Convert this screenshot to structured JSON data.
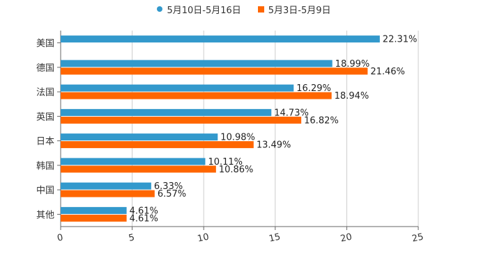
{
  "colors": {
    "series_a": "#3399cc",
    "series_b": "#ff6600",
    "grid": "#cccccc",
    "axis": "#666666",
    "text": "#333333"
  },
  "legend": {
    "series_a_label": "5月10日-5月16日",
    "series_b_label": "5月3日-5月9日"
  },
  "chart_data": {
    "type": "bar",
    "orientation": "horizontal",
    "title": "",
    "xlabel": "",
    "ylabel": "",
    "xlim": [
      0,
      25
    ],
    "x_ticks": [
      0,
      5,
      10,
      15,
      20,
      25
    ],
    "grid": true,
    "legend_position": "top-center",
    "categories": [
      "美国",
      "德国",
      "法国",
      "英国",
      "日本",
      "韩国",
      "中国",
      "其他"
    ],
    "series": [
      {
        "name": "5月10日-5月16日",
        "color": "#3399cc",
        "values": [
          22.31,
          18.99,
          16.29,
          14.73,
          10.98,
          10.11,
          6.33,
          4.61
        ],
        "labels": [
          "22.31%",
          "18.99%",
          "16.29%",
          "14.73%",
          "10.98%",
          "10.11%",
          "6.33%",
          "4.61%"
        ]
      },
      {
        "name": "5月3日-5月9日",
        "color": "#ff6600",
        "values": [
          null,
          21.46,
          18.94,
          16.82,
          13.49,
          10.86,
          6.57,
          4.61
        ],
        "labels": [
          "",
          "21.46%",
          "18.94%",
          "16.82%",
          "13.49%",
          "10.86%",
          "6.57%",
          "4.61%"
        ]
      }
    ]
  }
}
